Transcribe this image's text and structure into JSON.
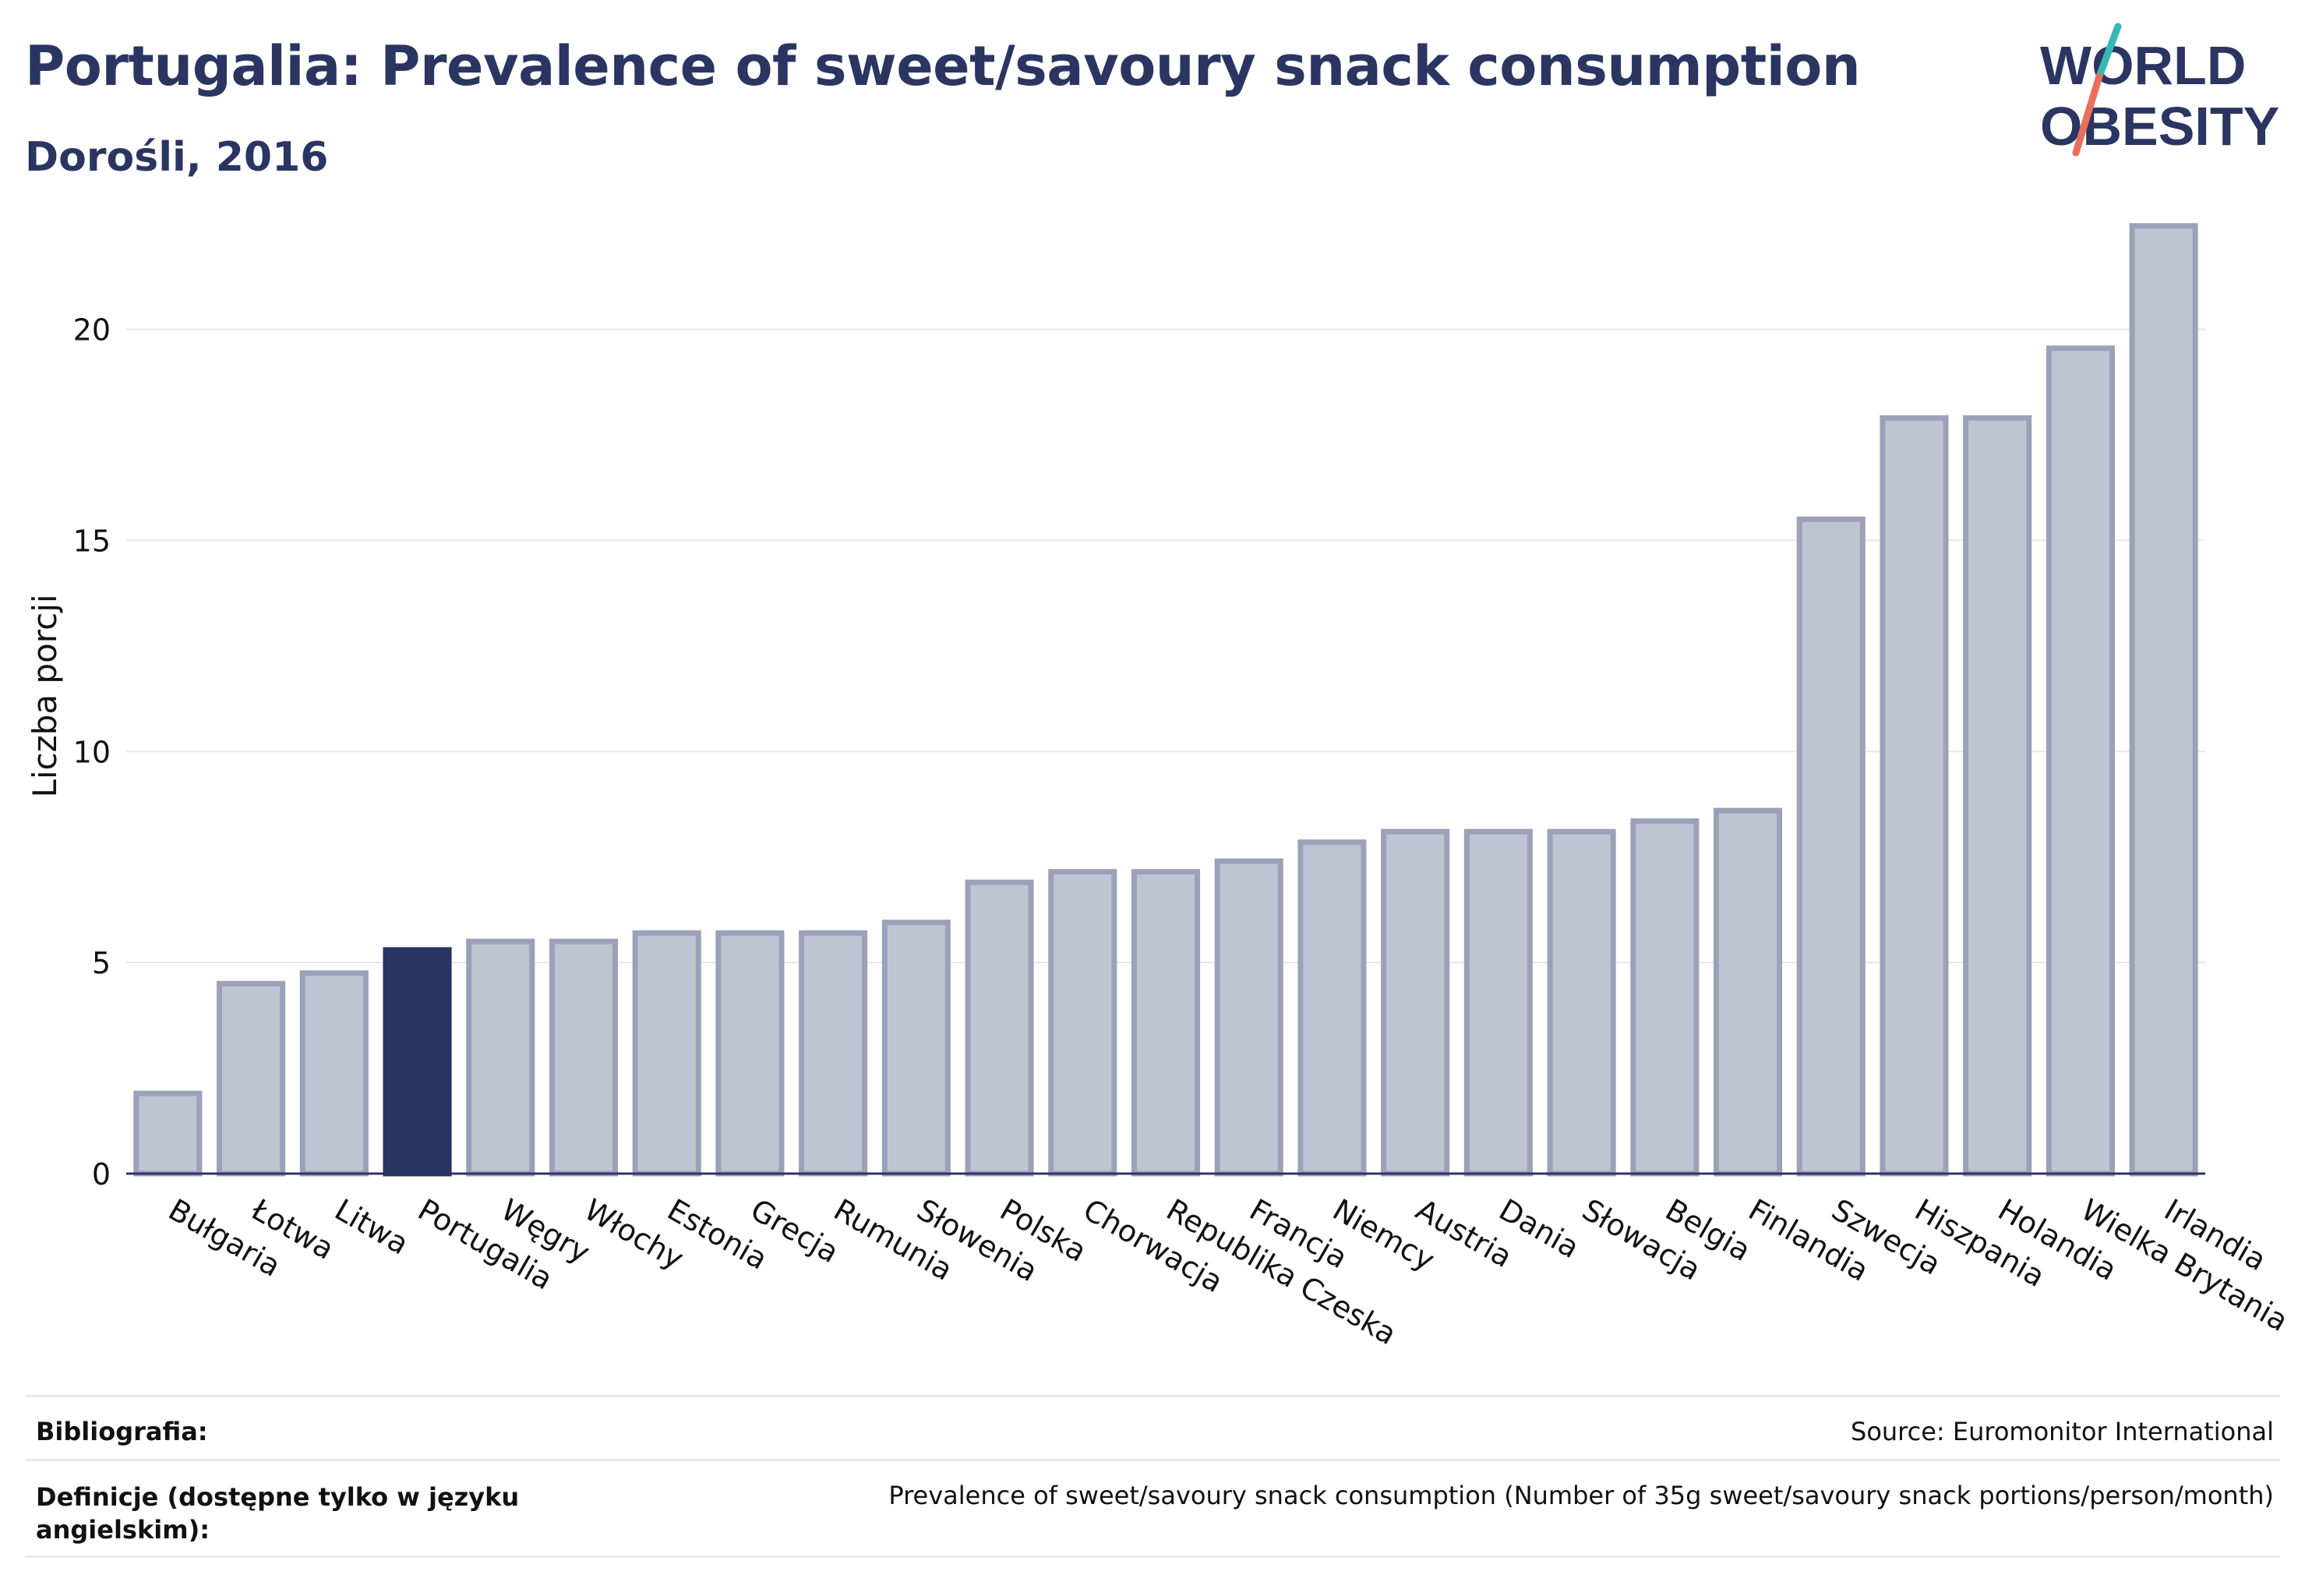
{
  "header": {
    "title": "Portugalia: Prevalence of sweet/savoury snack consumption",
    "subtitle": "Dorośli, 2016"
  },
  "logo": {
    "line1": "WORLD",
    "line2": "OBESITY",
    "accent_colors": [
      "#35b8b4",
      "#e8705a"
    ]
  },
  "colors": {
    "highlight_bar": "#2b3561",
    "bar_fill": "#c0c3d1",
    "bar_stroke": "#9ca1b9",
    "title": "#2b3561"
  },
  "chart_data": {
    "type": "bar",
    "categories": [
      "Bułgaria",
      "Łotwa",
      "Litwa",
      "Portugalia",
      "Węgry",
      "Włochy",
      "Estonia",
      "Grecja",
      "Rumunia",
      "Słowenia",
      "Polska",
      "Chorwacja",
      "Republika Czeska",
      "Francja",
      "Niemcy",
      "Austria",
      "Dania",
      "Słowacja",
      "Belgia",
      "Finlandia",
      "Szwecja",
      "Hiszpania",
      "Holandia",
      "Wielka Brytania",
      "Irlandia"
    ],
    "values": [
      1.9,
      4.5,
      4.75,
      5.3,
      5.5,
      5.5,
      5.7,
      5.7,
      5.7,
      5.95,
      6.9,
      7.15,
      7.15,
      7.4,
      7.85,
      8.1,
      8.1,
      8.1,
      8.35,
      8.6,
      15.5,
      17.9,
      17.9,
      19.55,
      22.45
    ],
    "highlight": "Portugalia",
    "ylabel": "Liczba porcji",
    "xlabel": "",
    "ylim": [
      0,
      23
    ],
    "yticks": [
      0,
      5,
      10,
      15,
      20
    ],
    "grid": true
  },
  "footer": {
    "bibliography_label": "Bibliografia:",
    "bibliography_value": "Source: Euromonitor International",
    "definitions_label_line1": "Definicje (dostępne tylko w języku",
    "definitions_label_line2": "angielskim):",
    "definitions_value": "Prevalence of sweet/savoury snack consumption (Number of 35g sweet/savoury snack portions/person/month)"
  }
}
